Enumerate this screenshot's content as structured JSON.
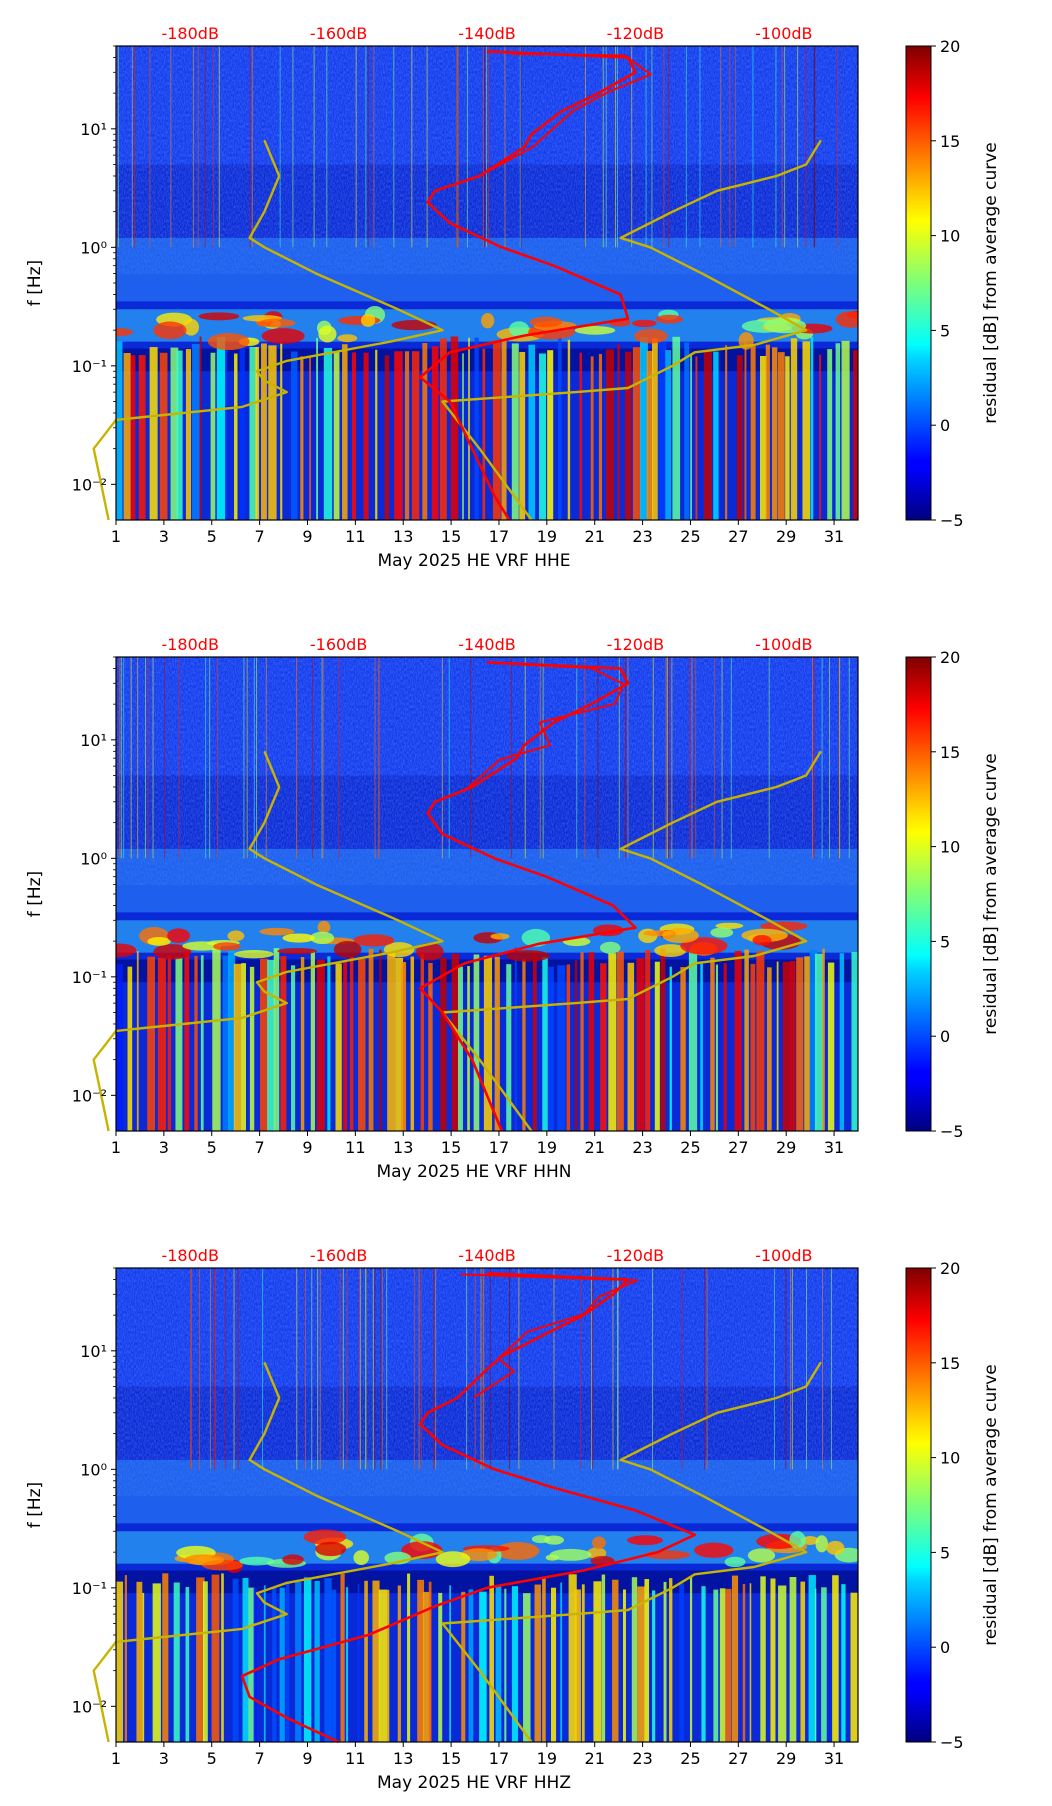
{
  "chart_data": [
    {
      "type": "heatmap",
      "panel_id": "hhe",
      "xlabel": "May 2025 HE VRF  HHE",
      "ylabel": "f [Hz]",
      "x_ticks": [
        "1",
        "3",
        "5",
        "7",
        "9",
        "11",
        "13",
        "15",
        "17",
        "19",
        "21",
        "23",
        "25",
        "27",
        "29",
        "31"
      ],
      "y_ticks": [
        "10⁻²",
        "10⁻¹",
        "10⁰",
        "10¹"
      ],
      "xlim": [
        1,
        32
      ],
      "ylim_hz": [
        0.005,
        50
      ],
      "top_axis_ticks": [
        "-180dB",
        "-160dB",
        "-140dB",
        "-120dB",
        "-100dB"
      ],
      "top_axis_color": "#ff0000",
      "colorbar": {
        "label": "residual [dB] from average curve",
        "ticks": [
          "20",
          "15",
          "10",
          "5",
          "0",
          "−5"
        ],
        "min": -5,
        "max": 20
      },
      "curves": {
        "median_psd_db": {
          "color": "#ff0000",
          "points": [
            [
              -137,
              0.005
            ],
            [
              -139,
              0.008
            ],
            [
              -142,
              0.02
            ],
            [
              -145,
              0.05
            ],
            [
              -149,
              0.08
            ],
            [
              -145,
              0.13
            ],
            [
              -135,
              0.18
            ],
            [
              -121,
              0.25
            ],
            [
              -122,
              0.4
            ],
            [
              -131,
              0.7
            ],
            [
              -138,
              1.0
            ],
            [
              -145,
              1.6
            ],
            [
              -148,
              2.4
            ],
            [
              -147,
              3.0
            ],
            [
              -141,
              4.0
            ],
            [
              -135,
              7.0
            ],
            [
              -134,
              9.0
            ],
            [
              -130,
              14.0
            ],
            [
              -125,
              20.0
            ],
            [
              -120,
              30.0
            ],
            [
              -121,
              40.0
            ],
            [
              -140,
              45.0
            ]
          ]
        },
        "noise_model_db": {
          "color": "#c8b400",
          "points": [
            [
              -191,
              0.005
            ],
            [
              -192,
              0.01
            ],
            [
              -193,
              0.02
            ],
            [
              -190,
              0.035
            ],
            [
              -173,
              0.045
            ],
            [
              -167,
              0.06
            ],
            [
              -170,
              0.075
            ],
            [
              -171,
              0.09
            ],
            [
              -167,
              0.11
            ],
            [
              -153,
              0.16
            ],
            [
              -146,
              0.2
            ],
            [
              -152,
              0.3
            ],
            [
              -163,
              0.6
            ],
            [
              -170,
              1.0
            ],
            [
              -172,
              1.2
            ],
            [
              -170,
              2.0
            ],
            [
              -168,
              4.0
            ],
            [
              -170,
              8.0
            ],
            [
              -134,
              0.005
            ],
            [
              -141,
              0.02
            ],
            [
              -146,
              0.05
            ],
            [
              -128,
              0.06
            ],
            [
              -121,
              0.065
            ],
            [
              -115,
              0.1
            ],
            [
              -112,
              0.13
            ],
            [
              -104,
              0.15
            ],
            [
              -97,
              0.2
            ],
            [
              -102,
              0.3
            ],
            [
              -111,
              0.6
            ],
            [
              -118,
              1.0
            ],
            [
              -122,
              1.2
            ],
            [
              -115,
              2.0
            ],
            [
              -109,
              3.0
            ],
            [
              -101,
              4.0
            ],
            [
              -97,
              5.0
            ],
            [
              -95,
              8.0
            ]
          ]
        }
      }
    },
    {
      "type": "heatmap",
      "panel_id": "hhn",
      "xlabel": "May 2025 HE VRF  HHN",
      "ylabel": "f [Hz]",
      "x_ticks": [
        "1",
        "3",
        "5",
        "7",
        "9",
        "11",
        "13",
        "15",
        "17",
        "19",
        "21",
        "23",
        "25",
        "27",
        "29",
        "31"
      ],
      "y_ticks": [
        "10⁻²",
        "10⁻¹",
        "10⁰",
        "10¹"
      ],
      "xlim": [
        1,
        32
      ],
      "ylim_hz": [
        0.005,
        50
      ],
      "top_axis_ticks": [
        "-180dB",
        "-160dB",
        "-140dB",
        "-120dB",
        "-100dB"
      ],
      "top_axis_color": "#ff0000",
      "colorbar": {
        "label": "residual [dB] from average curve",
        "ticks": [
          "20",
          "15",
          "10",
          "5",
          "0",
          "−5"
        ],
        "min": -5,
        "max": 20
      },
      "curves": {
        "median_psd_db": {
          "color": "#ff0000",
          "points": [
            [
              -138,
              0.005
            ],
            [
              -140,
              0.01
            ],
            [
              -142,
              0.02
            ],
            [
              -146,
              0.05
            ],
            [
              -149,
              0.08
            ],
            [
              -143,
              0.13
            ],
            [
              -133,
              0.19
            ],
            [
              -120,
              0.26
            ],
            [
              -123,
              0.4
            ],
            [
              -132,
              0.7
            ],
            [
              -139,
              1.0
            ],
            [
              -146,
              1.6
            ],
            [
              -148,
              2.4
            ],
            [
              -147,
              3.0
            ],
            [
              -142,
              4.0
            ],
            [
              -136,
              7.0
            ],
            [
              -135,
              9.0
            ],
            [
              -131,
              14.0
            ],
            [
              -126,
              20.0
            ],
            [
              -121,
              30.0
            ],
            [
              -122,
              40.0
            ],
            [
              -140,
              45.0
            ]
          ]
        },
        "noise_model_db": {
          "color": "#c8b400",
          "points": [
            [
              -191,
              0.005
            ],
            [
              -192,
              0.01
            ],
            [
              -193,
              0.02
            ],
            [
              -190,
              0.035
            ],
            [
              -173,
              0.045
            ],
            [
              -167,
              0.06
            ],
            [
              -170,
              0.075
            ],
            [
              -171,
              0.09
            ],
            [
              -167,
              0.11
            ],
            [
              -153,
              0.16
            ],
            [
              -146,
              0.2
            ],
            [
              -152,
              0.3
            ],
            [
              -163,
              0.6
            ],
            [
              -170,
              1.0
            ],
            [
              -172,
              1.2
            ],
            [
              -170,
              2.0
            ],
            [
              -168,
              4.0
            ],
            [
              -170,
              8.0
            ],
            [
              -134,
              0.005
            ],
            [
              -141,
              0.02
            ],
            [
              -146,
              0.05
            ],
            [
              -128,
              0.06
            ],
            [
              -121,
              0.065
            ],
            [
              -115,
              0.1
            ],
            [
              -112,
              0.13
            ],
            [
              -104,
              0.15
            ],
            [
              -97,
              0.2
            ],
            [
              -102,
              0.3
            ],
            [
              -111,
              0.6
            ],
            [
              -118,
              1.0
            ],
            [
              -122,
              1.2
            ],
            [
              -115,
              2.0
            ],
            [
              -109,
              3.0
            ],
            [
              -101,
              4.0
            ],
            [
              -97,
              5.0
            ],
            [
              -95,
              8.0
            ]
          ]
        }
      }
    },
    {
      "type": "heatmap",
      "panel_id": "hhz",
      "xlabel": "May 2025 HE VRF  HHZ",
      "ylabel": "f [Hz]",
      "x_ticks": [
        "1",
        "3",
        "5",
        "7",
        "9",
        "11",
        "13",
        "15",
        "17",
        "19",
        "21",
        "23",
        "25",
        "27",
        "29",
        "31"
      ],
      "y_ticks": [
        "10⁻²",
        "10⁻¹",
        "10⁰",
        "10¹"
      ],
      "xlim": [
        1,
        32
      ],
      "ylim_hz": [
        0.005,
        50
      ],
      "top_axis_ticks": [
        "-180dB",
        "-160dB",
        "-140dB",
        "-120dB",
        "-100dB"
      ],
      "top_axis_color": "#ff0000",
      "colorbar": {
        "label": "residual [dB] from average curve",
        "ticks": [
          "20",
          "15",
          "10",
          "5",
          "0",
          "−5"
        ],
        "min": -5,
        "max": 20
      },
      "curves": {
        "median_psd_db": {
          "color": "#ff0000",
          "points": [
            [
              -160,
              0.005
            ],
            [
              -167,
              0.008
            ],
            [
              -172,
              0.012
            ],
            [
              -173,
              0.018
            ],
            [
              -168,
              0.025
            ],
            [
              -156,
              0.04
            ],
            [
              -147,
              0.07
            ],
            [
              -140,
              0.1
            ],
            [
              -127,
              0.14
            ],
            [
              -117,
              0.2
            ],
            [
              -112,
              0.28
            ],
            [
              -120,
              0.45
            ],
            [
              -131,
              0.7
            ],
            [
              -139,
              1.0
            ],
            [
              -146,
              1.6
            ],
            [
              -149,
              2.4
            ],
            [
              -148,
              3.0
            ],
            [
              -144,
              4.0
            ],
            [
              -140,
              7.0
            ],
            [
              -138,
              9.0
            ],
            [
              -132,
              14.0
            ],
            [
              -127,
              20.0
            ],
            [
              -123,
              30.0
            ],
            [
              -121,
              40.0
            ],
            [
              -140,
              45.0
            ]
          ]
        },
        "noise_model_db": {
          "color": "#c8b400",
          "points": [
            [
              -191,
              0.005
            ],
            [
              -192,
              0.01
            ],
            [
              -193,
              0.02
            ],
            [
              -190,
              0.035
            ],
            [
              -173,
              0.045
            ],
            [
              -167,
              0.06
            ],
            [
              -170,
              0.075
            ],
            [
              -171,
              0.09
            ],
            [
              -167,
              0.11
            ],
            [
              -153,
              0.16
            ],
            [
              -146,
              0.2
            ],
            [
              -152,
              0.3
            ],
            [
              -163,
              0.6
            ],
            [
              -170,
              1.0
            ],
            [
              -172,
              1.2
            ],
            [
              -170,
              2.0
            ],
            [
              -168,
              4.0
            ],
            [
              -170,
              8.0
            ],
            [
              -134,
              0.005
            ],
            [
              -141,
              0.02
            ],
            [
              -146,
              0.05
            ],
            [
              -128,
              0.06
            ],
            [
              -121,
              0.065
            ],
            [
              -115,
              0.1
            ],
            [
              -112,
              0.13
            ],
            [
              -104,
              0.15
            ],
            [
              -97,
              0.2
            ],
            [
              -102,
              0.3
            ],
            [
              -111,
              0.6
            ],
            [
              -118,
              1.0
            ],
            [
              -122,
              1.2
            ],
            [
              -115,
              2.0
            ],
            [
              -109,
              3.0
            ],
            [
              -101,
              4.0
            ],
            [
              -97,
              5.0
            ],
            [
              -95,
              8.0
            ]
          ]
        }
      }
    }
  ]
}
